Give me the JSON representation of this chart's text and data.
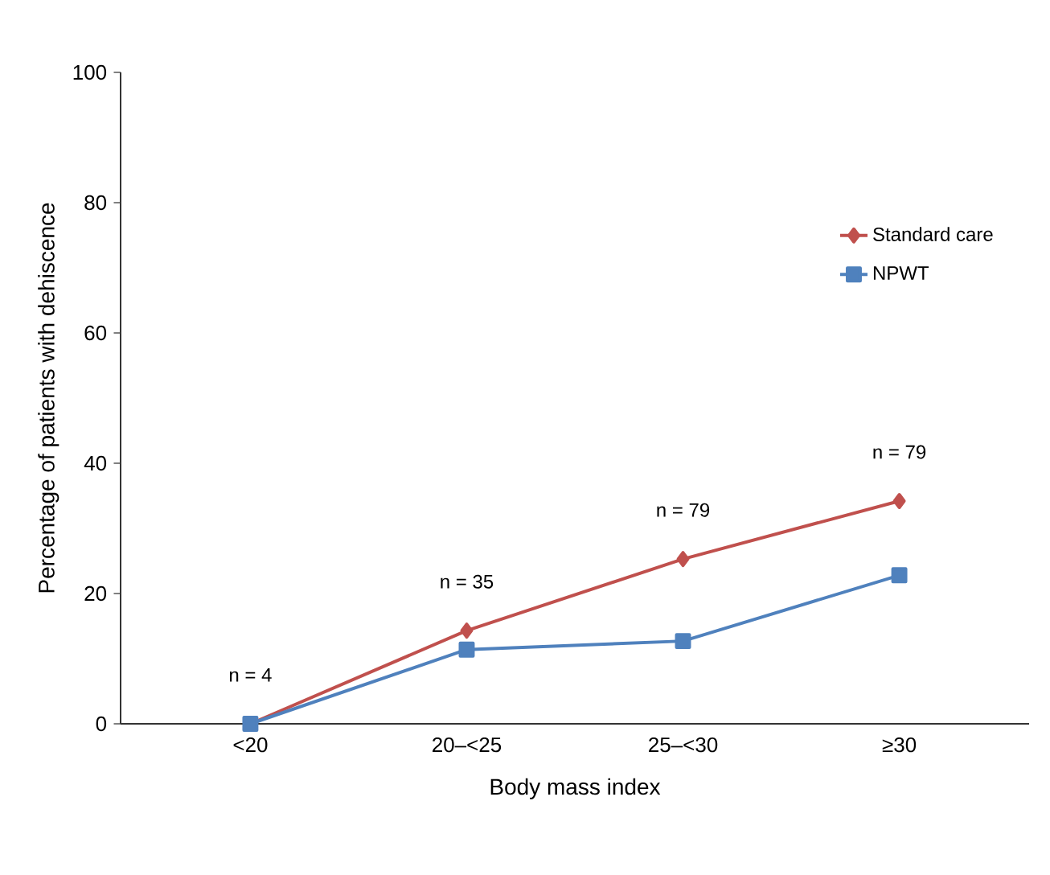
{
  "chart_data": {
    "type": "line",
    "xlabel": "Body mass index",
    "ylabel": "Percentage of patients with dehiscence",
    "categories": [
      "<20",
      "20–<25",
      "25–<30",
      "≥30"
    ],
    "series": [
      {
        "name": "Standard care",
        "color": "#c0504d",
        "marker": "diamond",
        "values": [
          0,
          14.3,
          25.3,
          34.2
        ]
      },
      {
        "name": "NPWT",
        "color": "#4f81bd",
        "marker": "square",
        "values": [
          0,
          11.4,
          12.7,
          22.8
        ]
      }
    ],
    "ylim": [
      0,
      100
    ],
    "yticks": [
      0,
      20,
      40,
      60,
      80,
      100
    ],
    "grid": false,
    "legend": "right",
    "line_style": "solid",
    "annotations": [
      "n = 4",
      "n = 35",
      "n = 79",
      "n = 79"
    ]
  }
}
